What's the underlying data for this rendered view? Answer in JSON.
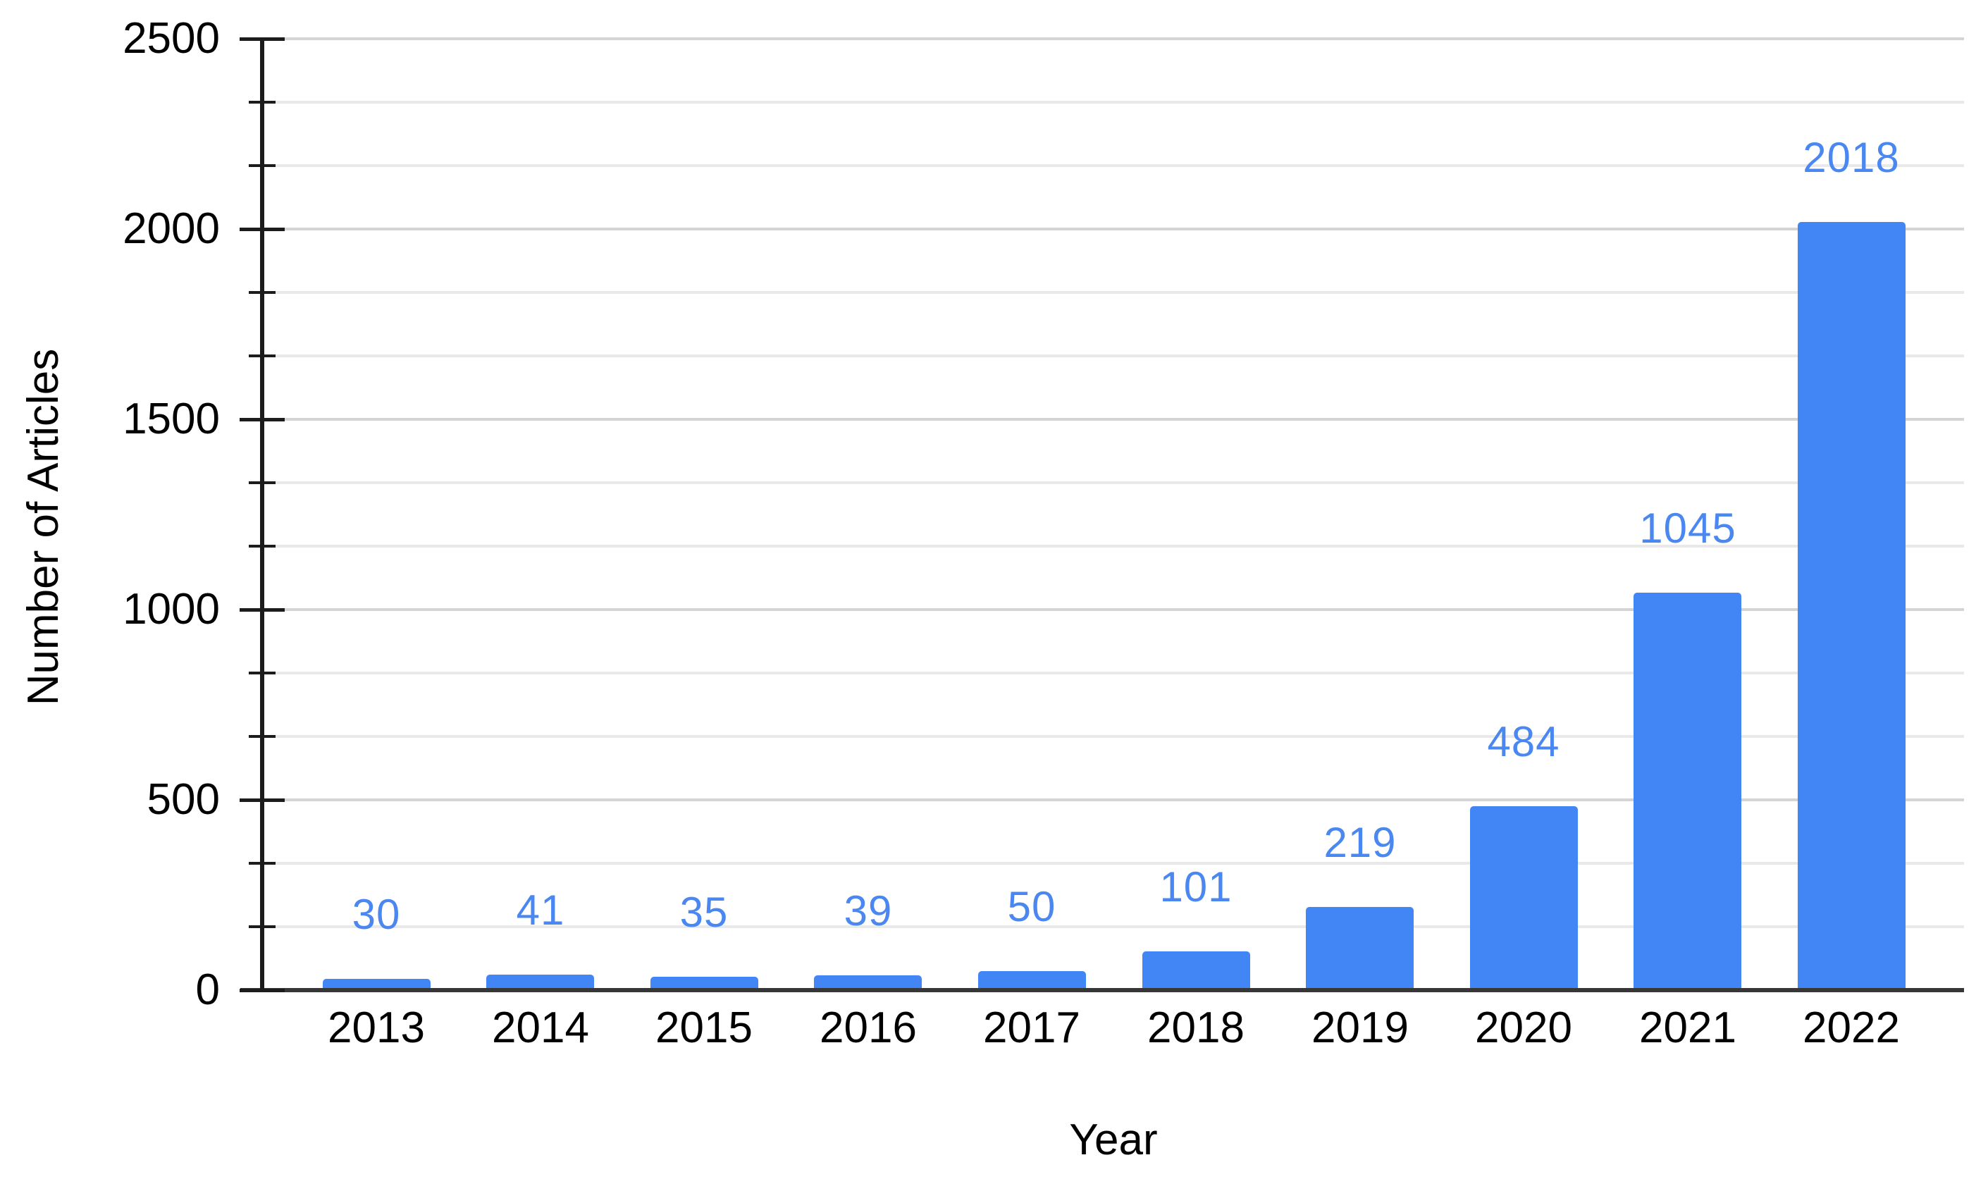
{
  "chart_data": {
    "type": "bar",
    "title": "",
    "categories": [
      "2013",
      "2014",
      "2015",
      "2016",
      "2017",
      "2018",
      "2019",
      "2020",
      "2021",
      "2022"
    ],
    "values": [
      30,
      41,
      35,
      39,
      50,
      101,
      219,
      484,
      1045,
      2018
    ],
    "data_labels": [
      "30",
      "41",
      "35",
      "39",
      "50",
      "101",
      "219",
      "484",
      "1045",
      "2018"
    ],
    "xlabel": "Year",
    "ylabel": "Number of Articles",
    "ylim": [
      0,
      2500
    ],
    "ytick_major_step": 500,
    "ytick_labels": [
      "0",
      "500",
      "1000",
      "1500",
      "2000",
      "2500"
    ],
    "minor_intervals_per_major": 3,
    "grid": "on",
    "legend": "none",
    "colors": {
      "bar_fill": "#4285f4",
      "data_label_text": "#4a87f0",
      "axis_text": "#000000",
      "gridline_major": "#d4d4d4",
      "gridline_minor": "#e9e9e9",
      "axis_line": "#1c1c1c",
      "baseline": "#373737",
      "background": "#ffffff"
    }
  }
}
